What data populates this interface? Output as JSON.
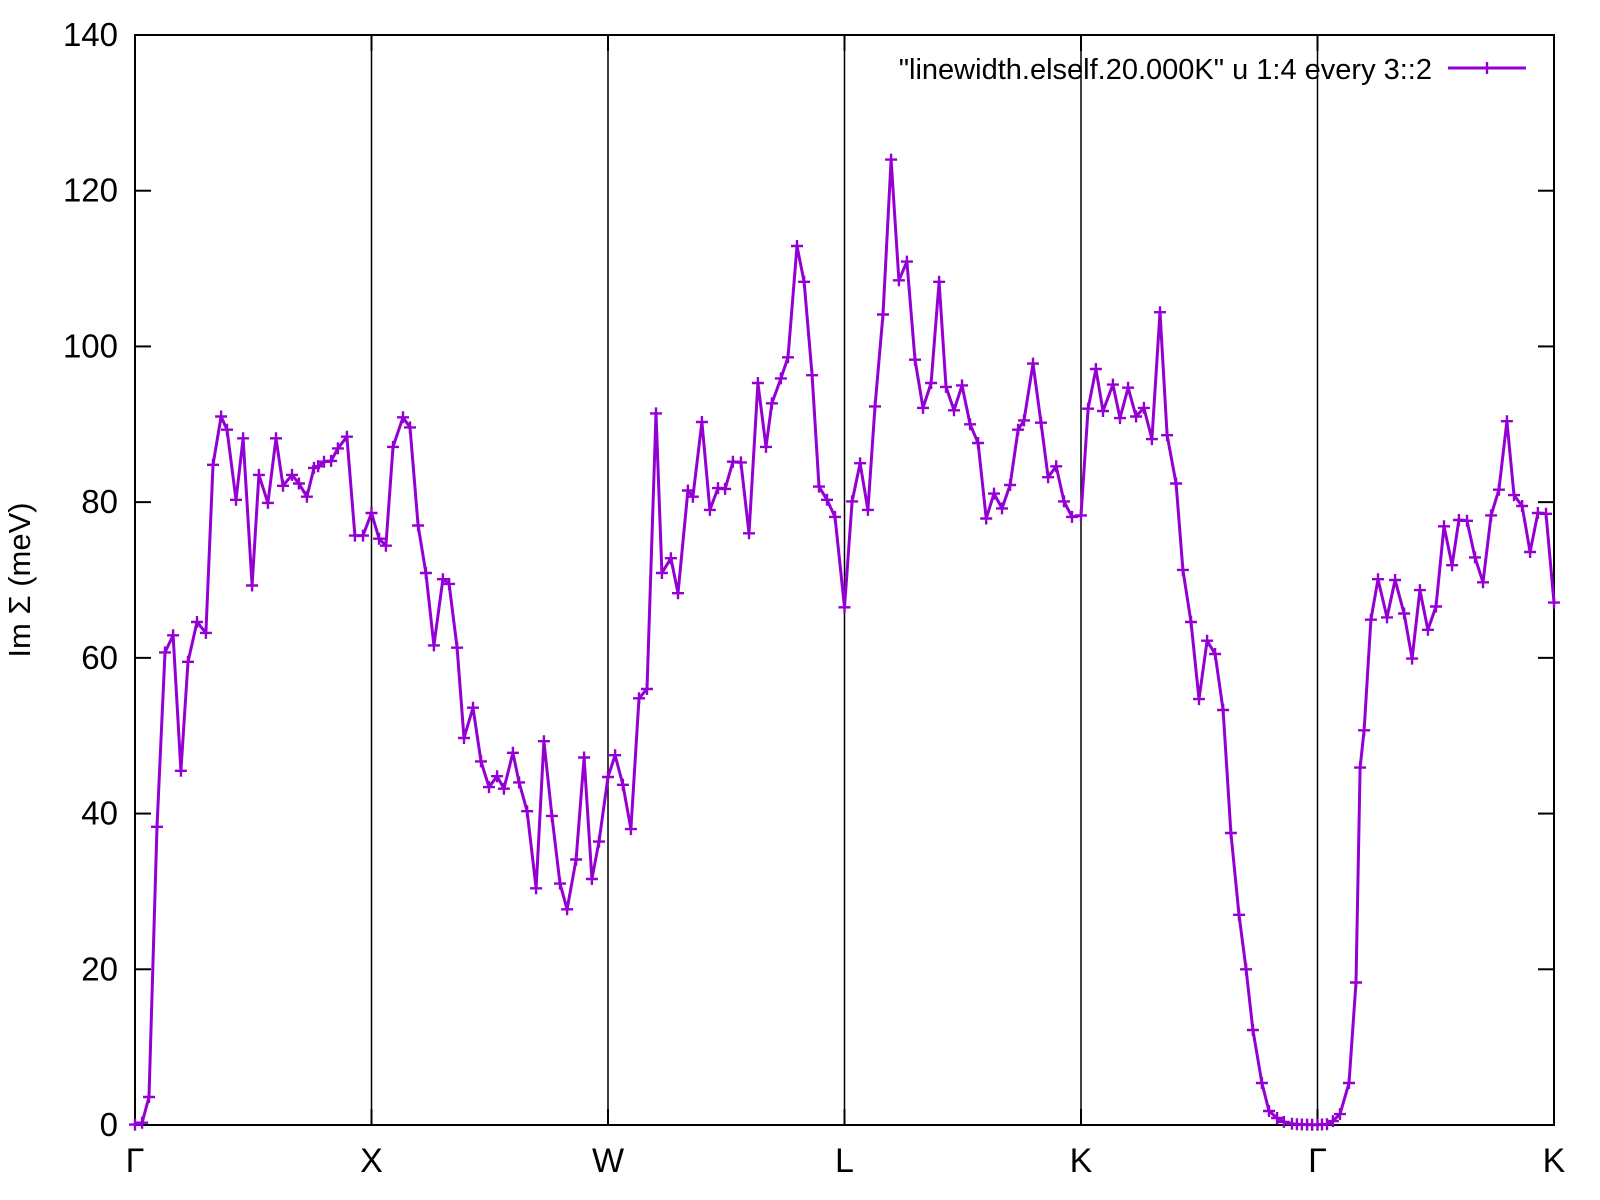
{
  "legend": {
    "label": "\"linewidth.elself.20.000K\" u 1:4 every 3::2"
  },
  "axes": {
    "ylabel": "Im Σ (meV)",
    "y_ticks": [
      0,
      20,
      40,
      60,
      80,
      100,
      120,
      140
    ],
    "x_tick_labels": [
      "Γ",
      "X",
      "W",
      "L",
      "K",
      "Γ",
      "K"
    ]
  },
  "colors": {
    "line": "#9400d3",
    "axis": "#000000",
    "background": "#ffffff"
  },
  "chart_data": {
    "type": "line",
    "title": "",
    "xlabel": "",
    "ylabel": "Im Σ (meV)",
    "ylim": [
      0,
      140
    ],
    "xlim": [
      0,
      6
    ],
    "grid": "vertical lines at high-symmetry points X, W, L, K, Γ",
    "legend_position": "top-right inside plot",
    "x_path_labels": [
      "Γ",
      "X",
      "W",
      "L",
      "K",
      "Γ",
      "K"
    ],
    "x_gridline_positions": [
      1,
      2,
      3,
      4,
      5
    ],
    "series": [
      {
        "name": "\"linewidth.elself.20.000K\" u 1:4 every 3::2",
        "color": "#9400d3",
        "marker": "plus",
        "points": [
          [
            0.0,
            0.05
          ],
          [
            0.03,
            0.3
          ],
          [
            0.059,
            3.6
          ],
          [
            0.093,
            38.3
          ],
          [
            0.127,
            60.7
          ],
          [
            0.161,
            62.9
          ],
          [
            0.194,
            45.5
          ],
          [
            0.224,
            59.5
          ],
          [
            0.262,
            64.6
          ],
          [
            0.3,
            63.2
          ],
          [
            0.33,
            84.8
          ],
          [
            0.364,
            91.0
          ],
          [
            0.389,
            89.3
          ],
          [
            0.427,
            80.3
          ],
          [
            0.457,
            88.2
          ],
          [
            0.495,
            69.3
          ],
          [
            0.524,
            83.5
          ],
          [
            0.562,
            79.9
          ],
          [
            0.596,
            88.2
          ],
          [
            0.626,
            82.1
          ],
          [
            0.664,
            83.5
          ],
          [
            0.693,
            82.4
          ],
          [
            0.727,
            80.7
          ],
          [
            0.757,
            84.4
          ],
          [
            0.774,
            84.6
          ],
          [
            0.799,
            85.2
          ],
          [
            0.829,
            85.3
          ],
          [
            0.858,
            86.9
          ],
          [
            0.896,
            88.4
          ],
          [
            0.93,
            75.7
          ],
          [
            0.964,
            75.7
          ],
          [
            1.0,
            78.6
          ],
          [
            1.032,
            75.3
          ],
          [
            1.061,
            74.4
          ],
          [
            1.091,
            87.1
          ],
          [
            1.133,
            90.9
          ],
          [
            1.163,
            89.6
          ],
          [
            1.197,
            77.0
          ],
          [
            1.23,
            70.9
          ],
          [
            1.264,
            61.6
          ],
          [
            1.302,
            70.1
          ],
          [
            1.328,
            69.5
          ],
          [
            1.362,
            61.3
          ],
          [
            1.391,
            49.7
          ],
          [
            1.429,
            53.6
          ],
          [
            1.463,
            46.7
          ],
          [
            1.497,
            43.4
          ],
          [
            1.531,
            44.8
          ],
          [
            1.56,
            43.2
          ],
          [
            1.598,
            47.8
          ],
          [
            1.624,
            44.0
          ],
          [
            1.658,
            40.3
          ],
          [
            1.696,
            30.4
          ],
          [
            1.729,
            49.3
          ],
          [
            1.763,
            39.7
          ],
          [
            1.797,
            31.0
          ],
          [
            1.827,
            27.7
          ],
          [
            1.865,
            34.1
          ],
          [
            1.899,
            47.2
          ],
          [
            1.932,
            31.6
          ],
          [
            1.962,
            36.4
          ],
          [
            2.0,
            44.7
          ],
          [
            2.03,
            47.5
          ],
          [
            2.063,
            43.7
          ],
          [
            2.097,
            38.0
          ],
          [
            2.131,
            54.8
          ],
          [
            2.165,
            56.0
          ],
          [
            2.203,
            91.4
          ],
          [
            2.228,
            70.9
          ],
          [
            2.266,
            72.8
          ],
          [
            2.296,
            68.3
          ],
          [
            2.338,
            81.5
          ],
          [
            2.359,
            80.7
          ],
          [
            2.397,
            90.3
          ],
          [
            2.431,
            79.0
          ],
          [
            2.465,
            81.8
          ],
          [
            2.495,
            81.7
          ],
          [
            2.528,
            85.2
          ],
          [
            2.562,
            85.1
          ],
          [
            2.596,
            76.0
          ],
          [
            2.634,
            95.3
          ],
          [
            2.668,
            87.1
          ],
          [
            2.693,
            92.7
          ],
          [
            2.731,
            95.9
          ],
          [
            2.761,
            98.6
          ],
          [
            2.799,
            112.9
          ],
          [
            2.829,
            108.3
          ],
          [
            2.863,
            96.3
          ],
          [
            2.892,
            82.0
          ],
          [
            2.926,
            80.3
          ],
          [
            2.96,
            78.1
          ],
          [
            3.0,
            66.5
          ],
          [
            3.032,
            80.1
          ],
          [
            3.066,
            85.0
          ],
          [
            3.099,
            79.0
          ],
          [
            3.129,
            92.3
          ],
          [
            3.163,
            104.1
          ],
          [
            3.197,
            124.0
          ],
          [
            3.23,
            108.5
          ],
          [
            3.264,
            110.9
          ],
          [
            3.298,
            98.3
          ],
          [
            3.332,
            92.1
          ],
          [
            3.366,
            95.3
          ],
          [
            3.4,
            108.3
          ],
          [
            3.429,
            94.8
          ],
          [
            3.463,
            91.8
          ],
          [
            3.497,
            95.0
          ],
          [
            3.531,
            90.0
          ],
          [
            3.565,
            87.6
          ],
          [
            3.599,
            77.9
          ],
          [
            3.632,
            81.1
          ],
          [
            3.666,
            79.2
          ],
          [
            3.7,
            82.2
          ],
          [
            3.734,
            89.3
          ],
          [
            3.759,
            90.5
          ],
          [
            3.797,
            97.8
          ],
          [
            3.831,
            90.2
          ],
          [
            3.861,
            83.2
          ],
          [
            3.895,
            84.6
          ],
          [
            3.928,
            80.1
          ],
          [
            3.962,
            78.1
          ],
          [
            4.0,
            78.3
          ],
          [
            4.03,
            92.0
          ],
          [
            4.063,
            97.1
          ],
          [
            4.093,
            91.7
          ],
          [
            4.135,
            95.1
          ],
          [
            4.165,
            90.8
          ],
          [
            4.199,
            94.7
          ],
          [
            4.233,
            91.0
          ],
          [
            4.266,
            92.1
          ],
          [
            4.3,
            88.1
          ],
          [
            4.334,
            104.4
          ],
          [
            4.364,
            88.6
          ],
          [
            4.402,
            82.4
          ],
          [
            4.431,
            71.3
          ],
          [
            4.465,
            64.6
          ],
          [
            4.499,
            54.7
          ],
          [
            4.533,
            62.2
          ],
          [
            4.567,
            60.5
          ],
          [
            4.601,
            53.3
          ],
          [
            4.634,
            37.5
          ],
          [
            4.668,
            27.0
          ],
          [
            4.698,
            20.0
          ],
          [
            4.727,
            12.2
          ],
          [
            4.765,
            5.4
          ],
          [
            4.795,
            1.8
          ],
          [
            4.829,
            0.9
          ],
          [
            4.858,
            0.4
          ],
          [
            4.892,
            0.15
          ],
          [
            4.913,
            0.1
          ],
          [
            4.934,
            0.07
          ],
          [
            4.956,
            0.05
          ],
          [
            4.977,
            0.04
          ],
          [
            5.0,
            0.04
          ],
          [
            5.019,
            0.06
          ],
          [
            5.04,
            0.1
          ],
          [
            5.065,
            0.5
          ],
          [
            5.095,
            1.4
          ],
          [
            5.133,
            5.4
          ],
          [
            5.163,
            18.3
          ],
          [
            5.18,
            45.9
          ],
          [
            5.197,
            50.7
          ],
          [
            5.226,
            64.9
          ],
          [
            5.256,
            70.1
          ],
          [
            5.294,
            65.2
          ],
          [
            5.328,
            70.0
          ],
          [
            5.366,
            65.7
          ],
          [
            5.4,
            59.9
          ],
          [
            5.433,
            68.7
          ],
          [
            5.467,
            63.6
          ],
          [
            5.501,
            66.6
          ],
          [
            5.535,
            76.9
          ],
          [
            5.569,
            71.9
          ],
          [
            5.598,
            77.7
          ],
          [
            5.632,
            77.6
          ],
          [
            5.666,
            72.9
          ],
          [
            5.7,
            69.7
          ],
          [
            5.734,
            78.3
          ],
          [
            5.767,
            81.6
          ],
          [
            5.801,
            90.4
          ],
          [
            5.831,
            80.9
          ],
          [
            5.865,
            79.5
          ],
          [
            5.899,
            73.6
          ],
          [
            5.932,
            78.6
          ],
          [
            5.966,
            78.5
          ],
          [
            6.0,
            67.1
          ]
        ]
      }
    ]
  }
}
